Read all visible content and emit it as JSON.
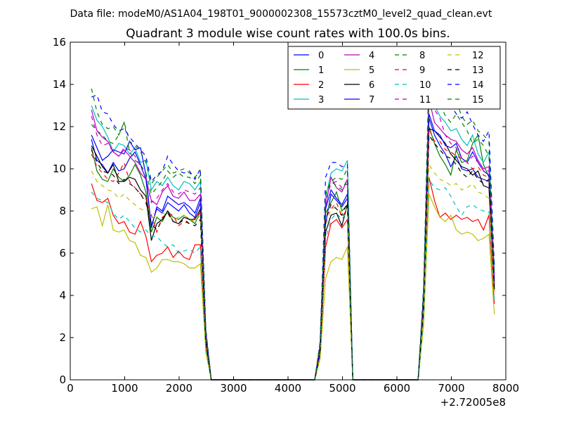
{
  "chart_data": {
    "type": "line",
    "suptitle": "Data file: modeM0/AS1A04_198T01_9000002308_15573cztM0_level2_quad_clean.evt",
    "title": "Quadrant 3 module wise count rates with 100.0s bins.",
    "xlabel": "",
    "ylabel": "",
    "xlim": [
      0,
      8000
    ],
    "ylim": [
      0,
      16
    ],
    "x_offset_label": "+2.72005e8",
    "xticks": [
      "0",
      "1000",
      "2000",
      "3000",
      "4000",
      "5000",
      "6000",
      "7000",
      "8000"
    ],
    "yticks": [
      "0",
      "2",
      "4",
      "6",
      "8",
      "10",
      "12",
      "14",
      "16"
    ],
    "grid": false,
    "legend_position": "top-right",
    "x": [
      390,
      490,
      590,
      690,
      790,
      890,
      990,
      1090,
      1190,
      1290,
      1390,
      1490,
      1590,
      1690,
      1790,
      1890,
      1990,
      2090,
      2190,
      2290,
      2390,
      2490,
      2590,
      2690,
      4490,
      4590,
      4690,
      4790,
      4890,
      4990,
      5090,
      5190,
      6390,
      6490,
      6590,
      6690,
      6790,
      6890,
      6990,
      7090,
      7190,
      7290,
      7390,
      7490,
      7590,
      7690,
      7790
    ],
    "series": [
      {
        "name": "0",
        "color": "#0000ff",
        "dash": "solid",
        "values": [
          11.4,
          10.4,
          10.2,
          9.8,
          10.3,
          9.9,
          10.0,
          10.5,
          10.8,
          10.2,
          9.5,
          7.3,
          8.1,
          7.9,
          8.4,
          8.2,
          8.0,
          8.3,
          7.9,
          7.7,
          8.4,
          2.0,
          0,
          0,
          0,
          1.5,
          7.4,
          8.8,
          8.5,
          8.2,
          8.6,
          0,
          0,
          3.8,
          12.4,
          11.6,
          11.1,
          10.7,
          10.1,
          10.6,
          10.0,
          9.9,
          10.0,
          9.6,
          9.5,
          9.4,
          4.5
        ]
      },
      {
        "name": "1",
        "color": "#008000",
        "dash": "solid",
        "values": [
          11.0,
          9.9,
          9.5,
          9.4,
          10.0,
          9.6,
          9.4,
          9.7,
          10.2,
          9.7,
          8.9,
          7.0,
          7.7,
          7.5,
          8.0,
          7.7,
          7.6,
          7.8,
          7.6,
          7.4,
          8.0,
          1.8,
          0,
          0,
          0,
          1.4,
          7.9,
          8.4,
          8.9,
          8.0,
          8.3,
          0,
          0,
          3.6,
          12.0,
          11.2,
          10.6,
          10.2,
          9.7,
          10.9,
          10.3,
          10.4,
          11.2,
          11.6,
          10.2,
          9.6,
          4.2
        ]
      },
      {
        "name": "2",
        "color": "#ff0000",
        "dash": "solid",
        "values": [
          9.3,
          8.5,
          8.4,
          8.6,
          7.8,
          7.4,
          7.5,
          7.0,
          6.9,
          7.5,
          6.8,
          5.6,
          5.9,
          6.0,
          6.3,
          5.8,
          6.1,
          5.8,
          5.7,
          6.4,
          6.4,
          1.5,
          0,
          0,
          0,
          1.1,
          6.3,
          7.4,
          7.6,
          7.2,
          7.6,
          0,
          0,
          2.8,
          9.6,
          8.5,
          7.7,
          7.9,
          7.6,
          7.8,
          7.6,
          7.7,
          7.5,
          7.6,
          7.1,
          7.8,
          3.6
        ]
      },
      {
        "name": "3",
        "color": "#00bfbf",
        "dash": "solid",
        "values": [
          13.0,
          12.3,
          12.0,
          11.5,
          10.8,
          11.2,
          11.1,
          10.7,
          11.0,
          10.3,
          10.4,
          9.0,
          9.4,
          9.2,
          9.6,
          9.2,
          9.0,
          9.4,
          9.3,
          9.0,
          9.4,
          2.3,
          0,
          0,
          0,
          1.7,
          8.6,
          9.8,
          10.0,
          9.9,
          10.4,
          0,
          0,
          4.2,
          13.6,
          13.0,
          12.5,
          12.2,
          11.8,
          11.9,
          11.4,
          11.1,
          11.6,
          10.7,
          10.3,
          10.8,
          5.0
        ]
      },
      {
        "name": "4",
        "color": "#bf00bf",
        "dash": "solid",
        "values": [
          12.8,
          11.8,
          11.5,
          11.3,
          10.8,
          10.6,
          10.9,
          10.6,
          10.3,
          9.8,
          9.5,
          8.5,
          8.3,
          8.9,
          9.2,
          8.7,
          8.6,
          8.9,
          8.5,
          8.5,
          8.8,
          2.2,
          0,
          0,
          0,
          1.6,
          8.2,
          9.6,
          9.1,
          8.9,
          9.5,
          0,
          0,
          4.0,
          13.3,
          12.2,
          11.9,
          11.6,
          11.4,
          11.3,
          10.9,
          10.7,
          11.0,
          10.4,
          10.0,
          10.1,
          4.6
        ]
      },
      {
        "name": "5",
        "color": "#bfbf00",
        "dash": "solid",
        "values": [
          8.1,
          8.2,
          7.3,
          8.3,
          7.1,
          7.0,
          7.1,
          6.6,
          6.5,
          5.9,
          5.8,
          5.1,
          5.3,
          5.7,
          5.7,
          5.6,
          5.6,
          5.5,
          5.3,
          5.3,
          5.5,
          1.3,
          0,
          0,
          0,
          1.0,
          4.8,
          5.6,
          5.8,
          5.7,
          6.3,
          0,
          0,
          2.6,
          8.8,
          8.2,
          7.7,
          7.5,
          7.8,
          7.1,
          6.9,
          7.0,
          6.9,
          6.6,
          6.7,
          6.9,
          3.1
        ]
      },
      {
        "name": "6",
        "color": "#000000",
        "dash": "solid",
        "values": [
          11.1,
          10.6,
          10.1,
          9.8,
          10.2,
          9.4,
          9.4,
          9.6,
          9.5,
          9.0,
          8.7,
          6.6,
          7.4,
          7.6,
          8.0,
          7.5,
          7.4,
          7.7,
          7.6,
          7.6,
          8.1,
          1.9,
          0,
          0,
          0,
          1.4,
          7.0,
          7.8,
          7.9,
          7.3,
          8.3,
          0,
          0,
          3.5,
          11.9,
          11.8,
          11.5,
          11.2,
          10.7,
          10.4,
          10.1,
          10.0,
          9.7,
          9.9,
          9.2,
          9.1,
          4.4
        ]
      },
      {
        "name": "7",
        "color": "#0000ff",
        "dash": "solid",
        "values": [
          11.6,
          11.0,
          10.4,
          10.6,
          10.9,
          10.8,
          10.7,
          11.3,
          10.9,
          11.0,
          9.7,
          7.2,
          8.2,
          8.0,
          8.7,
          8.5,
          8.3,
          8.4,
          8.2,
          7.9,
          8.6,
          2.1,
          0,
          0,
          0,
          1.5,
          8.1,
          9.0,
          8.6,
          8.3,
          8.8,
          0,
          0,
          3.9,
          12.6,
          11.8,
          11.6,
          11.1,
          11.0,
          11.2,
          10.5,
          10.3,
          10.8,
          10.3,
          9.9,
          9.7,
          4.8
        ]
      },
      {
        "name": "8",
        "color": "#008000",
        "dash": "dashed",
        "values": [
          13.8,
          12.7,
          12.1,
          11.9,
          12.0,
          11.6,
          12.2,
          11.3,
          11.1,
          10.8,
          10.3,
          9.3,
          9.6,
          9.9,
          10.2,
          9.8,
          9.9,
          10.0,
          9.8,
          9.6,
          9.9,
          2.4,
          0,
          0,
          0,
          1.8,
          8.8,
          9.4,
          9.6,
          9.5,
          10.0,
          0,
          0,
          4.3,
          14.9,
          14.0,
          13.4,
          13.1,
          12.8,
          13.2,
          12.5,
          12.1,
          12.3,
          11.8,
          11.6,
          11.3,
          5.3
        ]
      },
      {
        "name": "9",
        "color": "#ff0000",
        "dash": "dashed",
        "values": [
          10.7,
          10.1,
          9.8,
          9.5,
          9.4,
          9.8,
          10.3,
          9.4,
          9.1,
          8.8,
          8.6,
          7.8,
          7.0,
          7.7,
          7.9,
          7.8,
          7.3,
          7.5,
          7.4,
          7.7,
          7.9,
          1.8,
          0,
          0,
          0,
          1.3,
          7.7,
          8.1,
          8.4,
          7.7,
          8.1,
          0,
          0,
          3.4,
          11.9,
          11.3,
          11.3,
          10.9,
          10.8,
          10.6,
          10.5,
          10.3,
          10.0,
          10.1,
          9.7,
          9.6,
          4.2
        ]
      },
      {
        "name": "10",
        "color": "#00bfbf",
        "dash": "dashed",
        "values": [
          8.9,
          8.6,
          8.5,
          8.4,
          7.9,
          7.6,
          7.8,
          7.5,
          7.2,
          7.0,
          7.1,
          6.8,
          6.8,
          6.5,
          6.3,
          6.4,
          6.0,
          6.1,
          6.2,
          6.0,
          6.3,
          1.5,
          0,
          0,
          0,
          1.1,
          6.7,
          7.6,
          7.9,
          7.6,
          8.0,
          0,
          0,
          2.9,
          9.5,
          9.1,
          9.0,
          9.1,
          8.7,
          8.2,
          7.8,
          8.2,
          8.3,
          8.1,
          8.0,
          8.0,
          3.7
        ]
      },
      {
        "name": "11",
        "color": "#bf00bf",
        "dash": "dashed",
        "values": [
          12.5,
          11.6,
          11.1,
          11.2,
          10.8,
          10.6,
          11.0,
          10.9,
          10.6,
          10.1,
          9.6,
          8.4,
          8.6,
          9.0,
          9.3,
          8.9,
          8.8,
          9.0,
          8.9,
          8.8,
          9.1,
          2.2,
          0,
          0,
          0,
          1.6,
          8.5,
          9.3,
          9.4,
          9.1,
          9.3,
          0,
          0,
          4.0,
          14.3,
          12.8,
          12.4,
          11.6,
          11.2,
          11.0,
          10.5,
          10.3,
          10.6,
          10.3,
          9.9,
          9.9,
          4.7
        ]
      },
      {
        "name": "12",
        "color": "#bfbf00",
        "dash": "dashed",
        "values": [
          9.9,
          9.4,
          9.2,
          9.0,
          8.9,
          8.6,
          8.8,
          8.5,
          8.3,
          8.1,
          8.0,
          7.8,
          7.7,
          7.9,
          7.8,
          7.6,
          7.7,
          7.8,
          7.6,
          7.5,
          7.8,
          1.7,
          0,
          0,
          0,
          1.2,
          7.3,
          8.1,
          8.2,
          7.9,
          8.1,
          0,
          0,
          3.2,
          10.2,
          9.8,
          9.5,
          9.4,
          9.2,
          9.3,
          9.0,
          9.1,
          9.3,
          8.9,
          8.8,
          8.6,
          4.1
        ]
      },
      {
        "name": "13",
        "color": "#000000",
        "dash": "dashed",
        "values": [
          10.9,
          10.3,
          9.9,
          9.8,
          9.7,
          9.3,
          9.5,
          9.3,
          9.1,
          8.8,
          8.4,
          7.4,
          7.1,
          7.6,
          7.9,
          7.5,
          7.4,
          7.6,
          7.4,
          7.3,
          7.6,
          1.8,
          0,
          0,
          0,
          1.3,
          7.6,
          8.3,
          8.1,
          7.8,
          8.4,
          0,
          0,
          3.4,
          11.6,
          11.2,
          10.9,
          10.6,
          10.5,
          10.2,
          9.8,
          9.6,
          9.9,
          9.5,
          9.3,
          9.5,
          4.3
        ]
      },
      {
        "name": "14",
        "color": "#0000ff",
        "dash": "dashed",
        "values": [
          13.4,
          13.5,
          12.7,
          12.6,
          12.1,
          11.8,
          11.9,
          11.5,
          11.2,
          10.9,
          10.6,
          9.4,
          9.7,
          9.9,
          10.6,
          10.2,
          9.9,
          9.8,
          9.9,
          9.5,
          10.0,
          2.4,
          0,
          0,
          0,
          1.8,
          9.6,
          10.3,
          10.3,
          10.1,
          10.2,
          0,
          0,
          4.4,
          13.8,
          14.1,
          13.8,
          13.3,
          13.0,
          12.6,
          12.4,
          12.7,
          12.1,
          11.6,
          11.3,
          11.8,
          5.4
        ]
      },
      {
        "name": "15",
        "color": "#008000",
        "dash": "dashed",
        "values": [
          12.1,
          11.8,
          11.6,
          11.3,
          11.2,
          11.6,
          12.2,
          10.8,
          10.4,
          10.2,
          9.8,
          8.8,
          9.1,
          9.4,
          9.9,
          9.6,
          9.8,
          9.6,
          9.6,
          9.3,
          9.7,
          2.3,
          0,
          0,
          0,
          1.7,
          8.9,
          9.4,
          9.2,
          9.0,
          9.5,
          0,
          0,
          4.1,
          13.7,
          13.1,
          13.1,
          12.5,
          12.2,
          12.6,
          12.2,
          11.8,
          11.2,
          11.4,
          11.1,
          10.6,
          5.0
        ]
      }
    ]
  }
}
